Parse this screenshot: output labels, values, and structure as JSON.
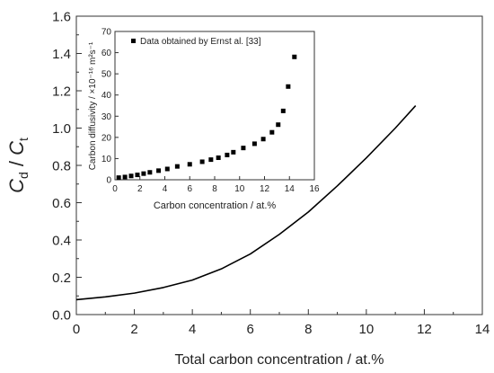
{
  "chart_data": [
    {
      "id": "main",
      "type": "line",
      "xlabel": "Total carbon concentration / at.%",
      "ylabel": "C_d / C_t",
      "xlim": [
        0,
        14
      ],
      "ylim": [
        0,
        1.6
      ],
      "xticks": [
        0,
        2,
        4,
        6,
        8,
        10,
        12,
        14
      ],
      "yticks": [
        0.0,
        0.2,
        0.4,
        0.6,
        0.8,
        1.0,
        1.2,
        1.4,
        1.6
      ],
      "series": [
        {
          "x": [
            0,
            1,
            2,
            3,
            4,
            5,
            6,
            7,
            8,
            9,
            10,
            11,
            11.7
          ],
          "y": [
            0.08,
            0.095,
            0.115,
            0.145,
            0.185,
            0.245,
            0.325,
            0.43,
            0.55,
            0.69,
            0.84,
            1.0,
            1.12
          ]
        }
      ]
    },
    {
      "id": "inset",
      "type": "scatter",
      "xlabel": "Carbon concentration / at.%",
      "ylabel": "Carbon diffusivity / ×10⁻¹⁶ m²s⁻¹",
      "xlim": [
        0,
        16
      ],
      "ylim": [
        0,
        70
      ],
      "xticks": [
        0,
        2,
        4,
        6,
        8,
        10,
        12,
        14,
        16
      ],
      "yticks": [
        0,
        10,
        20,
        30,
        40,
        50,
        60,
        70
      ],
      "legend": "top-left",
      "series": [
        {
          "name": "Data obtained by Ernst al. [33]",
          "x": [
            0.3,
            0.8,
            1.3,
            1.8,
            2.3,
            2.8,
            3.5,
            4.2,
            5.0,
            6.0,
            7.0,
            7.7,
            8.3,
            9.0,
            9.5,
            10.3,
            11.2,
            11.9,
            12.6,
            13.1,
            13.5,
            13.9,
            14.4
          ],
          "y": [
            1.0,
            1.3,
            1.8,
            2.3,
            2.9,
            3.5,
            4.3,
            5.1,
            6.3,
            7.3,
            8.5,
            9.5,
            10.4,
            11.7,
            13.0,
            15.0,
            17.0,
            19.2,
            22.4,
            26.0,
            32.5,
            44.0,
            58.0
          ]
        }
      ]
    }
  ]
}
